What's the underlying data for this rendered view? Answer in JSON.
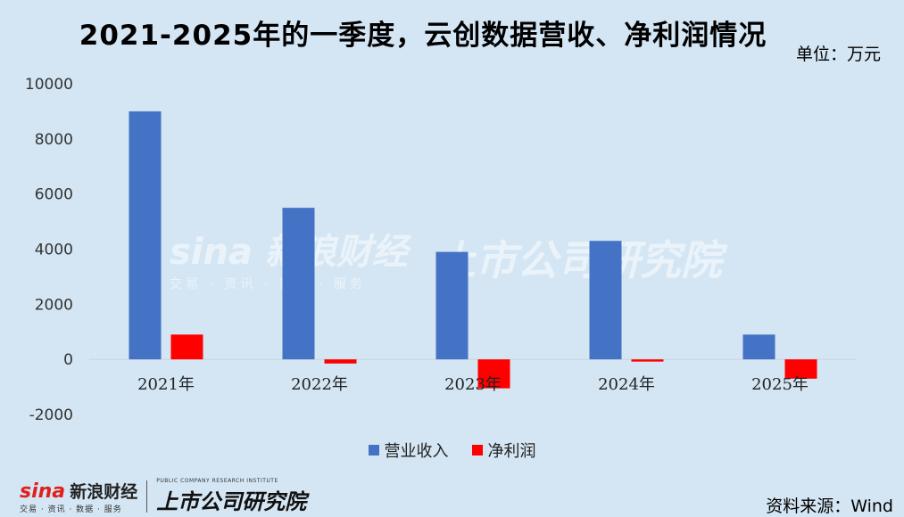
{
  "title": "2021-2025年的一季度，云创数据营收、净利润情况",
  "unit": "单位：万元",
  "source": "资料来源：Wind",
  "colors": {
    "revenue": "#4472c4",
    "profit": "#ff0000",
    "background": "#d4e6f4"
  },
  "brand": {
    "logo": "sina",
    "name": "新浪财经",
    "tagline": "交易 · 资讯 · 数据 · 服务",
    "institute": "上市公司研究院",
    "institute_en": "PUBLIC COMPANY RESEARCH INSTITUTE"
  },
  "chart_data": {
    "type": "bar",
    "categories": [
      "2021年",
      "2022年",
      "2023年",
      "2024年",
      "2025年"
    ],
    "series": [
      {
        "name": "营业收入",
        "values": [
          9000,
          5500,
          3900,
          4300,
          900
        ]
      },
      {
        "name": "净利润",
        "values": [
          900,
          -150,
          -1050,
          -80,
          -700
        ]
      }
    ],
    "ylim": [
      -2000,
      10000
    ],
    "yticks": [
      -2000,
      0,
      2000,
      4000,
      6000,
      8000,
      10000
    ],
    "legend": "bottom",
    "grid": false
  }
}
